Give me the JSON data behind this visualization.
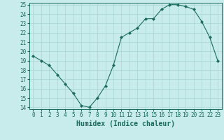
{
  "x": [
    0,
    1,
    2,
    3,
    4,
    5,
    6,
    7,
    8,
    9,
    10,
    11,
    12,
    13,
    14,
    15,
    16,
    17,
    18,
    19,
    20,
    21,
    22,
    23
  ],
  "y": [
    19.5,
    19.0,
    18.5,
    17.5,
    16.5,
    15.5,
    14.2,
    14.0,
    15.0,
    16.3,
    18.5,
    21.5,
    22.0,
    22.5,
    23.5,
    23.5,
    24.5,
    25.0,
    25.0,
    24.8,
    24.5,
    23.2,
    21.5,
    19.0
  ],
  "xlabel": "Humidex (Indice chaleur)",
  "ylim": [
    14,
    25
  ],
  "xlim": [
    -0.5,
    23.5
  ],
  "yticks": [
    14,
    15,
    16,
    17,
    18,
    19,
    20,
    21,
    22,
    23,
    24,
    25
  ],
  "xticks": [
    0,
    1,
    2,
    3,
    4,
    5,
    6,
    7,
    8,
    9,
    10,
    11,
    12,
    13,
    14,
    15,
    16,
    17,
    18,
    19,
    20,
    21,
    22,
    23
  ],
  "line_color": "#1a6b5a",
  "marker_color": "#1a6b5a",
  "bg_color": "#c8ecec",
  "grid_color": "#a8d4d4",
  "tick_label_fontsize": 5.5,
  "xlabel_fontsize": 7,
  "linewidth": 0.8,
  "markersize": 2.0
}
